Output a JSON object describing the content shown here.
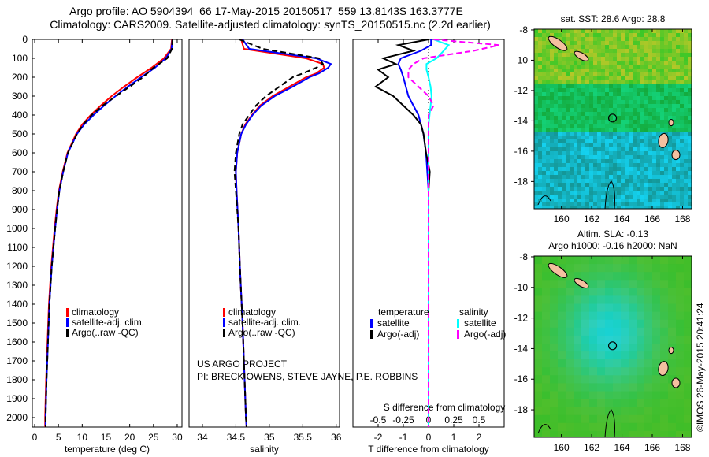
{
  "title_line1": "Argo profile: AO 5904394_66 17-May-2015 20150517_559 13.8143S 163.3777E",
  "title_line2": "Climatology: CARS2009. Satellite-adjusted climatology: synTS_20150515.nc (2.2d earlier)",
  "credits": [
    "US ARGO PROJECT",
    "PI: BRECK OWENS, STEVE JAYNE, P.E. ROBBINS"
  ],
  "watermark": "©IMOS 26-May-2015 20:41:24",
  "colors": {
    "red": "#ff0000",
    "blue": "#0000ff",
    "black": "#000000",
    "cyan": "#00ffff",
    "magenta": "#ff00ff"
  },
  "chart_data": [
    {
      "type": "line",
      "xlabel": "temperature (deg C)",
      "ylim": [
        2050,
        0
      ],
      "xlim": [
        -0.5,
        31
      ],
      "yticks": [
        0,
        100,
        200,
        300,
        400,
        500,
        600,
        700,
        800,
        900,
        1000,
        1100,
        1200,
        1300,
        1400,
        1500,
        1600,
        1700,
        1800,
        1900,
        2000
      ],
      "xticks": [
        0,
        5,
        10,
        15,
        20,
        25,
        30
      ],
      "legend": [
        "climatology",
        "satellite-adj. clim.",
        "Argo(..raw -QC)"
      ],
      "depth": [
        0,
        50,
        100,
        150,
        200,
        250,
        300,
        350,
        400,
        450,
        500,
        600,
        700,
        800,
        900,
        1000,
        1200,
        1400,
        1600,
        1800,
        2000,
        2050
      ],
      "series": [
        {
          "name": "climatology",
          "color": "red",
          "dash": false,
          "values": [
            28.9,
            28.7,
            27.2,
            24.6,
            21.6,
            18.8,
            16.2,
            13.9,
            11.8,
            10.0,
            8.7,
            6.9,
            5.9,
            5.1,
            4.6,
            4.2,
            3.5,
            3.0,
            2.7,
            2.4,
            2.2,
            2.2
          ]
        },
        {
          "name": "satellite-adj. clim.",
          "color": "blue",
          "dash": false,
          "values": [
            29.0,
            28.8,
            27.6,
            25.3,
            22.4,
            19.6,
            17.0,
            14.6,
            12.4,
            10.4,
            8.9,
            7.0,
            6.0,
            5.2,
            4.7,
            4.3,
            3.6,
            3.1,
            2.8,
            2.5,
            2.3,
            2.3
          ]
        },
        {
          "name": "Argo(..raw -QC)",
          "color": "black",
          "dash": true,
          "values": [
            29.0,
            28.9,
            27.9,
            25.0,
            22.8,
            20.0,
            17.1,
            14.3,
            12.0,
            10.2,
            8.9,
            7.0,
            6.0,
            5.2,
            4.7,
            4.3,
            3.6,
            3.1,
            2.8,
            2.5,
            2.3,
            2.3
          ]
        }
      ]
    },
    {
      "type": "line",
      "xlabel": "salinity",
      "ylim": [
        2050,
        0
      ],
      "xlim": [
        33.8,
        36.05
      ],
      "xticks": [
        34,
        34.5,
        35,
        35.5,
        36
      ],
      "legend": [
        "climatology",
        "satellite-adj. clim.",
        "Argo(..raw -QC)"
      ],
      "depth": [
        0,
        50,
        100,
        130,
        150,
        180,
        200,
        250,
        300,
        350,
        400,
        450,
        500,
        600,
        700,
        800,
        1000,
        1200,
        1500,
        1800,
        2000,
        2050
      ],
      "series": [
        {
          "name": "climatology",
          "color": "red",
          "dash": false,
          "values": [
            34.58,
            34.62,
            35.55,
            35.8,
            35.82,
            35.7,
            35.55,
            35.3,
            35.05,
            34.86,
            34.74,
            34.64,
            34.58,
            34.52,
            34.5,
            34.51,
            34.54,
            34.56,
            34.6,
            34.63,
            34.65,
            34.66
          ]
        },
        {
          "name": "satellite-adj. clim.",
          "color": "blue",
          "dash": false,
          "values": [
            34.6,
            34.7,
            35.7,
            35.92,
            35.88,
            35.74,
            35.6,
            35.35,
            35.08,
            34.88,
            34.75,
            34.65,
            34.58,
            34.52,
            34.5,
            34.51,
            34.54,
            34.56,
            34.6,
            34.63,
            34.65,
            34.66
          ]
        },
        {
          "name": "Argo(..raw -QC)",
          "color": "black",
          "dash": true,
          "values": [
            34.55,
            34.9,
            35.75,
            35.8,
            35.7,
            35.5,
            35.35,
            35.15,
            34.95,
            34.8,
            34.7,
            34.6,
            34.55,
            34.5,
            34.48,
            34.5,
            34.54,
            34.56,
            34.6,
            34.63,
            34.65,
            34.66
          ]
        }
      ]
    },
    {
      "type": "line",
      "xlabel": "T difference from climatology",
      "top_xlabel": "S difference from climatology",
      "ylim": [
        2050,
        0
      ],
      "xlim": [
        -3,
        3
      ],
      "xticks": [
        -2,
        -1,
        0,
        1,
        2
      ],
      "top_xticks": [
        -0.5,
        -0.25,
        0,
        0.25,
        0.5
      ],
      "top_xtick_labels": [
        "-0.5",
        "-0.25",
        "0",
        "0.25",
        "0.5"
      ],
      "legend_titles": [
        "temperature",
        "salinity"
      ],
      "legend": [
        "satellite",
        "Argo(-adj)",
        "satellite",
        "Argo(-adj)"
      ],
      "depth": [
        0,
        30,
        60,
        100,
        130,
        160,
        200,
        250,
        300,
        350,
        400,
        450,
        500,
        600,
        700,
        800,
        1000,
        1500,
        2000,
        2050
      ],
      "series": [
        {
          "name": "T satellite",
          "color": "blue",
          "dash": false,
          "scale": 1,
          "values": [
            0.1,
            0.1,
            -0.3,
            -1.1,
            -1.2,
            -1.1,
            -1.0,
            -0.9,
            -0.8,
            -0.6,
            -0.4,
            -0.3,
            -0.2,
            -0.1,
            -0.05,
            0,
            0,
            0,
            0,
            0
          ]
        },
        {
          "name": "T Argo(-adj)",
          "color": "black",
          "dash": false,
          "scale": 1,
          "values": [
            0,
            -1.2,
            -0.6,
            -1.8,
            -1.3,
            -2.0,
            -1.6,
            -2.1,
            -1.4,
            -1.0,
            -0.6,
            -0.3,
            -0.2,
            -0.1,
            0.05,
            0,
            0,
            0,
            0,
            0
          ]
        },
        {
          "name": "S satellite",
          "color": "cyan",
          "dash": false,
          "scale": 4,
          "values": [
            0.05,
            0.2,
            0.15,
            0.08,
            -0.02,
            -0.02,
            0,
            0.02,
            0.03,
            0.02,
            0.01,
            0,
            0,
            0,
            0,
            0,
            0,
            0,
            0,
            0
          ]
        },
        {
          "name": "S Argo(-adj)",
          "color": "magenta",
          "dash": true,
          "scale": 4,
          "values": [
            0.05,
            0.7,
            0.45,
            -0.05,
            -0.15,
            -0.2,
            -0.2,
            -0.1,
            0,
            0.05,
            0,
            0,
            0,
            0,
            0,
            0,
            0,
            0,
            0,
            0
          ]
        }
      ]
    }
  ],
  "maps": [
    {
      "title": [
        "sat. SST: 28.6 Argo: 28.8"
      ],
      "kind": "sst"
    },
    {
      "title": [
        "Altim. SLA: -0.13",
        "Argo h1000: -0.16 h2000: NaN"
      ],
      "kind": "sla"
    }
  ],
  "map_axes": {
    "lon_ticks": [
      160,
      162,
      164,
      166,
      168
    ],
    "lat_ticks": [
      -8,
      -10,
      -12,
      -14,
      -16,
      -18
    ]
  }
}
